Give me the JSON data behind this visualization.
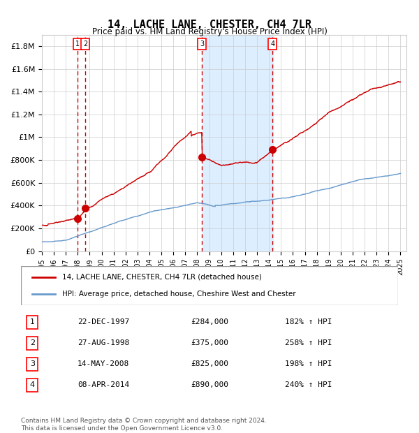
{
  "title": "14, LACHE LANE, CHESTER, CH4 7LR",
  "subtitle": "Price paid vs. HM Land Registry's House Price Index (HPI)",
  "sales": [
    {
      "num": 1,
      "date": "1997-12-22",
      "price": 284000,
      "hpi_pct": "182%",
      "label_date": "22-DEC-1997"
    },
    {
      "num": 2,
      "date": "1998-08-27",
      "price": 375000,
      "hpi_pct": "258%",
      "label_date": "27-AUG-1998"
    },
    {
      "num": 3,
      "date": "2008-05-14",
      "price": 825000,
      "hpi_pct": "198%",
      "label_date": "14-MAY-2008"
    },
    {
      "num": 4,
      "date": "2014-04-08",
      "price": 890000,
      "hpi_pct": "240%",
      "label_date": "08-APR-2014"
    }
  ],
  "shade_start": "2008-05-14",
  "shade_end": "2014-04-08",
  "y_ticks": [
    0,
    200000,
    400000,
    600000,
    800000,
    1000000,
    1200000,
    1400000,
    1600000,
    1800000
  ],
  "y_labels": [
    "£0",
    "£200K",
    "£400K",
    "£600K",
    "£800K",
    "£1M",
    "£1.2M",
    "£1.4M",
    "£1.6M",
    "£1.8M"
  ],
  "x_start_year": 1995,
  "x_end_year": 2025,
  "hpi_line_color": "#6699cc",
  "sale_line_color": "#cc0000",
  "sale_dot_color": "#cc0000",
  "vline_color": "#cc0000",
  "shade_color": "#ddeeff",
  "grid_color": "#cccccc",
  "background_color": "#ffffff",
  "legend_label_red": "14, LACHE LANE, CHESTER, CH4 7LR (detached house)",
  "legend_label_blue": "HPI: Average price, detached house, Cheshire West and Chester",
  "footer": "Contains HM Land Registry data © Crown copyright and database right 2024.\nThis data is licensed under the Open Government Licence v3.0."
}
